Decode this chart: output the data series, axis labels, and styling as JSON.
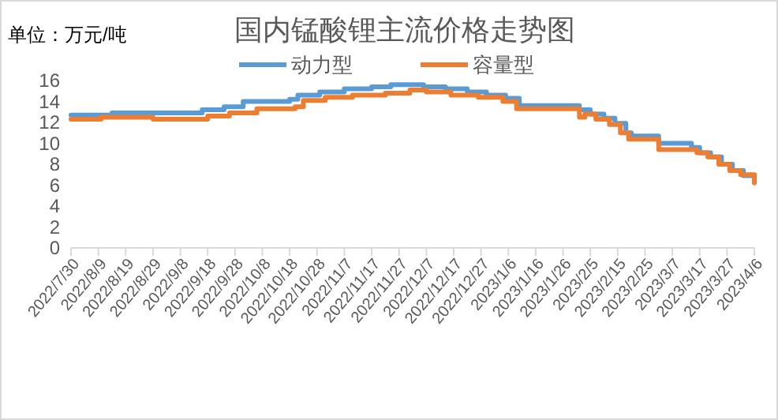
{
  "chart_data": {
    "type": "step",
    "title": "国内锰酸锂主流价格走势图",
    "annotations": [
      "单位：万元/吨"
    ],
    "legend": "top",
    "grid": false,
    "line_style": "solid",
    "marker": "none",
    "xlim": [
      "2022-07-30",
      "2023-04-06"
    ],
    "xticks": [
      {
        "value": "2022-07-30",
        "label": "2022/7/30"
      },
      {
        "value": "2022-08-09",
        "label": "2022/8/9"
      },
      {
        "value": "2022-08-19",
        "label": "2022/8/19"
      },
      {
        "value": "2022-08-29",
        "label": "2022/8/29"
      },
      {
        "value": "2022-09-08",
        "label": "2022/9/8"
      },
      {
        "value": "2022-09-18",
        "label": "2022/9/18"
      },
      {
        "value": "2022-09-28",
        "label": "2022/9/28"
      },
      {
        "value": "2022-10-08",
        "label": "2022/10/8"
      },
      {
        "value": "2022-10-18",
        "label": "2022/10/18"
      },
      {
        "value": "2022-10-28",
        "label": "2022/10/28"
      },
      {
        "value": "2022-11-07",
        "label": "2022/11/7"
      },
      {
        "value": "2022-11-17",
        "label": "2022/11/17"
      },
      {
        "value": "2022-11-27",
        "label": "2022/11/27"
      },
      {
        "value": "2022-12-07",
        "label": "2022/12/7"
      },
      {
        "value": "2022-12-17",
        "label": "2022/12/17"
      },
      {
        "value": "2022-12-27",
        "label": "2022/12/27"
      },
      {
        "value": "2023-01-06",
        "label": "2023/1/6"
      },
      {
        "value": "2023-01-16",
        "label": "2023/1/16"
      },
      {
        "value": "2023-01-26",
        "label": "2023/1/26"
      },
      {
        "value": "2023-02-05",
        "label": "2023/2/5"
      },
      {
        "value": "2023-02-15",
        "label": "2023/2/15"
      },
      {
        "value": "2023-02-25",
        "label": "2023/2/25"
      },
      {
        "value": "2023-03-07",
        "label": "2023/3/7"
      },
      {
        "value": "2023-03-17",
        "label": "2023/3/17"
      },
      {
        "value": "2023-03-27",
        "label": "2023/3/27"
      },
      {
        "value": "2023-04-06",
        "label": "2023/4/6"
      }
    ],
    "ylim": [
      0,
      16
    ],
    "yticks": [
      0,
      2,
      4,
      6,
      8,
      10,
      12,
      14,
      16
    ],
    "series": [
      {
        "name": "动力型",
        "color": "#5b9bd5",
        "x": [
          "2022-07-30",
          "2022-08-14",
          "2022-09-16",
          "2022-09-24",
          "2022-10-01",
          "2022-10-18",
          "2022-10-21",
          "2022-10-29",
          "2022-11-07",
          "2022-11-17",
          "2022-11-24",
          "2022-12-06",
          "2022-12-14",
          "2022-12-22",
          "2022-12-29",
          "2023-01-05",
          "2023-01-10",
          "2023-02-01",
          "2023-02-05",
          "2023-02-10",
          "2023-02-14",
          "2023-02-18",
          "2023-02-20",
          "2023-03-02",
          "2023-03-14",
          "2023-03-17",
          "2023-03-21",
          "2023-03-25",
          "2023-03-29",
          "2023-04-02",
          "2023-04-06"
        ],
        "values": [
          12.7,
          12.9,
          13.2,
          13.5,
          14.0,
          14.2,
          14.6,
          14.9,
          15.2,
          15.4,
          15.6,
          15.4,
          15.2,
          14.9,
          14.6,
          14.3,
          13.6,
          13.2,
          12.8,
          12.4,
          11.9,
          11.0,
          10.7,
          10.0,
          9.6,
          9.1,
          8.7,
          8.0,
          7.4,
          6.9,
          6.6
        ]
      },
      {
        "name": "容量型",
        "color": "#ed7d31",
        "x": [
          "2022-07-30",
          "2022-08-10",
          "2022-08-29",
          "2022-09-18",
          "2022-09-26",
          "2022-10-06",
          "2022-10-20",
          "2022-10-23",
          "2022-10-31",
          "2022-11-10",
          "2022-11-22",
          "2022-12-01",
          "2022-12-07",
          "2022-12-16",
          "2022-12-26",
          "2023-01-04",
          "2023-01-09",
          "2023-02-01",
          "2023-02-03",
          "2023-02-07",
          "2023-02-12",
          "2023-02-16",
          "2023-02-19",
          "2023-03-02",
          "2023-03-16",
          "2023-03-20",
          "2023-03-24",
          "2023-03-28",
          "2023-04-01",
          "2023-04-06"
        ],
        "values": [
          12.3,
          12.5,
          12.3,
          12.6,
          12.9,
          13.3,
          13.5,
          14.1,
          14.4,
          14.6,
          14.8,
          15.1,
          14.9,
          14.6,
          14.4,
          14.0,
          13.3,
          12.5,
          12.8,
          12.3,
          11.8,
          11.0,
          10.4,
          9.4,
          9.1,
          8.7,
          8.0,
          7.4,
          7.0,
          6.2
        ]
      }
    ]
  }
}
